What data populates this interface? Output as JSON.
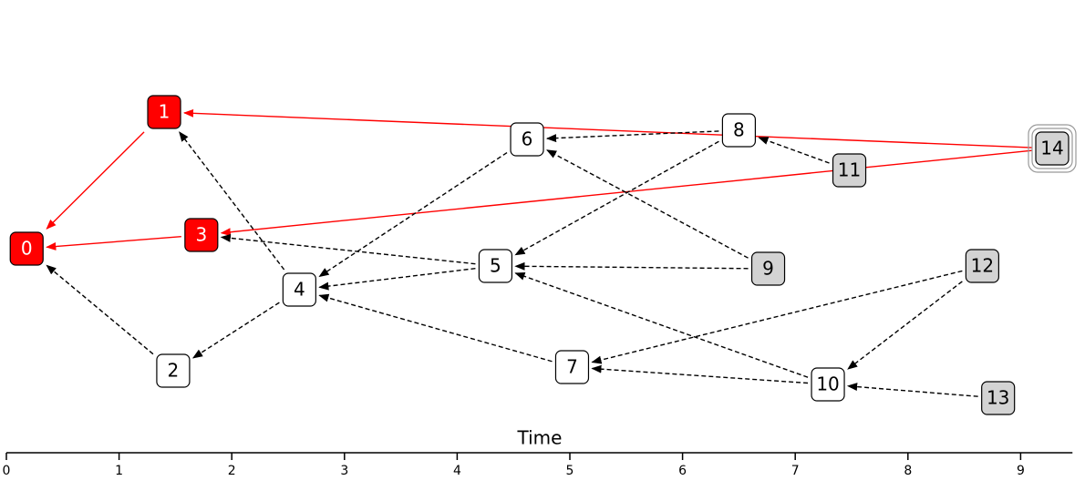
{
  "axis": {
    "label": "Time",
    "xlim": [
      0,
      9.46
    ],
    "ticks": [
      0,
      1,
      2,
      3,
      4,
      5,
      6,
      7,
      8,
      9
    ]
  },
  "nodes": [
    {
      "label": "0",
      "time": 0.18,
      "fill": "#ff0000"
    },
    {
      "label": "1",
      "time": 1.4,
      "fill": "#ff0000"
    },
    {
      "label": "2",
      "time": 1.48,
      "fill": "#ffffff"
    },
    {
      "label": "3",
      "time": 1.73,
      "fill": "#ff0000"
    },
    {
      "label": "4",
      "time": 2.6,
      "fill": "#ffffff"
    },
    {
      "label": "5",
      "time": 4.34,
      "fill": "#ffffff"
    },
    {
      "label": "6",
      "time": 4.62,
      "fill": "#ffffff"
    },
    {
      "label": "7",
      "time": 5.02,
      "fill": "#ffffff"
    },
    {
      "label": "8",
      "time": 6.5,
      "fill": "#ffffff"
    },
    {
      "label": "9",
      "time": 6.76,
      "fill": "#d3d3d3"
    },
    {
      "label": "10",
      "time": 7.29,
      "fill": "#ffffff"
    },
    {
      "label": "11",
      "time": 7.48,
      "fill": "#d3d3d3"
    },
    {
      "label": "12",
      "time": 8.66,
      "fill": "#d3d3d3"
    },
    {
      "label": "13",
      "time": 8.8,
      "fill": "#d3d3d3"
    },
    {
      "label": "14",
      "time": 9.28,
      "fill": "#d3d3d3",
      "outline": "double"
    }
  ],
  "edges": [
    {
      "from": 1,
      "to": 0,
      "color": "#ff0000",
      "dashed": false
    },
    {
      "from": 3,
      "to": 0,
      "color": "#ff0000",
      "dashed": false
    },
    {
      "from": 14,
      "to": 1,
      "color": "#ff0000",
      "dashed": false
    },
    {
      "from": 14,
      "to": 3,
      "color": "#ff0000",
      "dashed": false
    },
    {
      "from": 2,
      "to": 0,
      "color": "#000000",
      "dashed": true
    },
    {
      "from": 4,
      "to": 1,
      "color": "#000000",
      "dashed": true
    },
    {
      "from": 4,
      "to": 2,
      "color": "#000000",
      "dashed": true
    },
    {
      "from": 5,
      "to": 3,
      "color": "#000000",
      "dashed": true
    },
    {
      "from": 5,
      "to": 4,
      "color": "#000000",
      "dashed": true
    },
    {
      "from": 6,
      "to": 4,
      "color": "#000000",
      "dashed": true
    },
    {
      "from": 7,
      "to": 4,
      "color": "#000000",
      "dashed": true
    },
    {
      "from": 8,
      "to": 6,
      "color": "#000000",
      "dashed": true
    },
    {
      "from": 8,
      "to": 5,
      "color": "#000000",
      "dashed": true
    },
    {
      "from": 9,
      "to": 6,
      "color": "#000000",
      "dashed": true
    },
    {
      "from": 9,
      "to": 5,
      "color": "#000000",
      "dashed": true
    },
    {
      "from": 10,
      "to": 5,
      "color": "#000000",
      "dashed": true
    },
    {
      "from": 10,
      "to": 7,
      "color": "#000000",
      "dashed": true
    },
    {
      "from": 11,
      "to": 8,
      "color": "#000000",
      "dashed": true
    },
    {
      "from": 12,
      "to": 7,
      "color": "#000000",
      "dashed": true
    },
    {
      "from": 12,
      "to": 10,
      "color": "#000000",
      "dashed": true
    },
    {
      "from": 13,
      "to": 10,
      "color": "#000000",
      "dashed": true
    }
  ]
}
